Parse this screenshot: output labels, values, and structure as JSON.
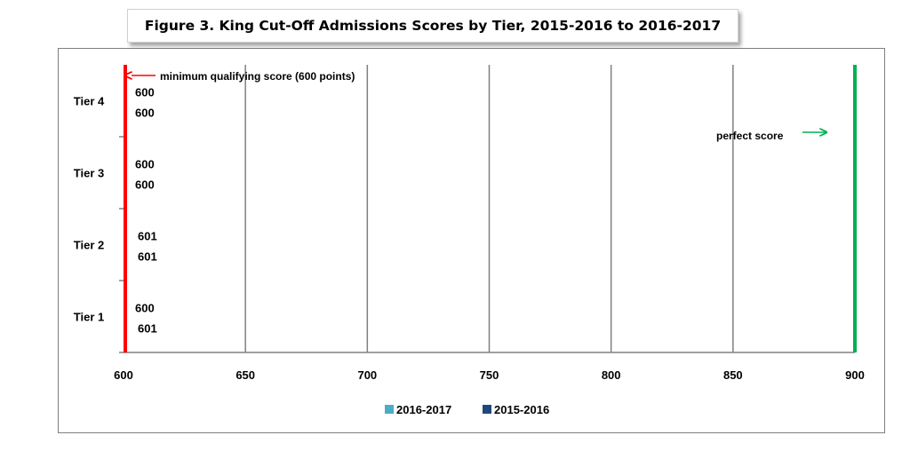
{
  "chart_data": {
    "type": "bar",
    "orientation": "horizontal",
    "title": "Figure 3. King Cut-Off Admissions Scores by Tier, 2015-2016 to 2016-2017",
    "categories": [
      "Tier 4",
      "Tier 3",
      "Tier 2",
      "Tier 1"
    ],
    "series": [
      {
        "name": "2016-2017",
        "values": [
          600,
          600,
          601,
          600
        ],
        "color": "#4bacc6"
      },
      {
        "name": "2015-2016",
        "values": [
          600,
          600,
          601,
          601
        ],
        "color": "#1f497d"
      }
    ],
    "xlim": [
      600,
      900
    ],
    "xticks": [
      "600",
      "650",
      "700",
      "750",
      "800",
      "850",
      "900"
    ],
    "grid": "vertical",
    "legend_position": "bottom",
    "annotations": {
      "min_label": "minimum qualifying score (600 points)",
      "min_value": 600,
      "min_color": "#ff0000",
      "perfect_label": "perfect score",
      "perfect_value": 900,
      "perfect_color": "#00b050"
    }
  }
}
